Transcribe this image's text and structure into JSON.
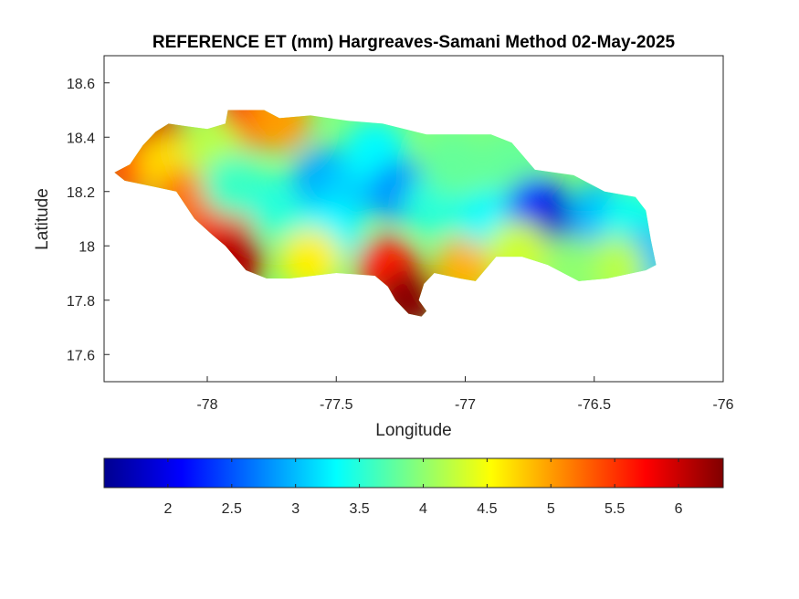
{
  "chart_data": {
    "type": "heatmap",
    "title": "REFERENCE ET (mm) Hargreaves-Samani Method  02-May-2025",
    "xlabel": "Longitude",
    "ylabel": "Latitude",
    "xlim": [
      -78.4,
      -76.0
    ],
    "ylim": [
      17.5,
      18.7
    ],
    "xticks": [
      -78,
      -77.5,
      -77,
      -76.5,
      -76
    ],
    "xtick_labels": [
      "-78",
      "-77.5",
      "-77",
      "-76.5",
      "-76"
    ],
    "yticks": [
      17.6,
      17.8,
      18.0,
      18.2,
      18.4,
      18.6
    ],
    "ytick_labels": [
      "17.6",
      "17.8",
      "18",
      "18.2",
      "18.4",
      "18.6"
    ],
    "grid": false,
    "colormap": "jet",
    "colorbar": {
      "orientation": "horizontal",
      "location": "bottom",
      "range": [
        1.5,
        6.35
      ],
      "ticks": [
        2,
        2.5,
        3,
        3.5,
        4,
        4.5,
        5,
        5.5,
        6
      ],
      "tick_labels": [
        "2",
        "2.5",
        "3",
        "3.5",
        "4",
        "4.5",
        "5",
        "5.5",
        "6"
      ]
    },
    "region_outline": [
      [
        -78.36,
        18.27
      ],
      [
        -78.3,
        18.3
      ],
      [
        -78.25,
        18.37
      ],
      [
        -78.2,
        18.42
      ],
      [
        -78.15,
        18.45
      ],
      [
        -78.08,
        18.44
      ],
      [
        -78.0,
        18.43
      ],
      [
        -77.93,
        18.45
      ],
      [
        -77.92,
        18.5
      ],
      [
        -77.78,
        18.5
      ],
      [
        -77.72,
        18.47
      ],
      [
        -77.6,
        18.48
      ],
      [
        -77.45,
        18.46
      ],
      [
        -77.32,
        18.45
      ],
      [
        -77.15,
        18.41
      ],
      [
        -77.05,
        18.41
      ],
      [
        -76.9,
        18.41
      ],
      [
        -76.82,
        18.38
      ],
      [
        -76.73,
        18.28
      ],
      [
        -76.58,
        18.26
      ],
      [
        -76.46,
        18.2
      ],
      [
        -76.34,
        18.18
      ],
      [
        -76.3,
        18.13
      ],
      [
        -76.28,
        18.02
      ],
      [
        -76.26,
        17.93
      ],
      [
        -76.3,
        17.91
      ],
      [
        -76.45,
        17.88
      ],
      [
        -76.56,
        17.87
      ],
      [
        -76.68,
        17.93
      ],
      [
        -76.78,
        17.96
      ],
      [
        -76.88,
        17.96
      ],
      [
        -76.96,
        17.87
      ],
      [
        -77.02,
        17.88
      ],
      [
        -77.12,
        17.9
      ],
      [
        -77.16,
        17.86
      ],
      [
        -77.18,
        17.8
      ],
      [
        -77.15,
        17.76
      ],
      [
        -77.17,
        17.74
      ],
      [
        -77.22,
        17.75
      ],
      [
        -77.27,
        17.8
      ],
      [
        -77.3,
        17.85
      ],
      [
        -77.35,
        17.89
      ],
      [
        -77.5,
        17.9
      ],
      [
        -77.68,
        17.88
      ],
      [
        -77.77,
        17.88
      ],
      [
        -77.85,
        17.91
      ],
      [
        -77.93,
        18.0
      ],
      [
        -77.98,
        18.04
      ],
      [
        -78.05,
        18.1
      ],
      [
        -78.12,
        18.2
      ],
      [
        -78.22,
        18.22
      ],
      [
        -78.32,
        18.24
      ]
    ],
    "sample_points": [
      {
        "lon": -78.2,
        "lat": 18.41,
        "value": 6.0
      },
      {
        "lon": -78.3,
        "lat": 18.28,
        "value": 5.4
      },
      {
        "lon": -78.15,
        "lat": 18.3,
        "value": 4.7
      },
      {
        "lon": -78.08,
        "lat": 18.17,
        "value": 5.2
      },
      {
        "lon": -77.95,
        "lat": 18.05,
        "value": 5.6
      },
      {
        "lon": -77.9,
        "lat": 17.94,
        "value": 6.1
      },
      {
        "lon": -77.85,
        "lat": 18.47,
        "value": 5.6
      },
      {
        "lon": -77.72,
        "lat": 18.46,
        "value": 5.0
      },
      {
        "lon": -77.98,
        "lat": 18.36,
        "value": 4.2
      },
      {
        "lon": -77.9,
        "lat": 18.22,
        "value": 3.6
      },
      {
        "lon": -77.72,
        "lat": 18.15,
        "value": 3.5
      },
      {
        "lon": -77.55,
        "lat": 18.25,
        "value": 2.9
      },
      {
        "lon": -77.45,
        "lat": 18.2,
        "value": 3.1
      },
      {
        "lon": -77.35,
        "lat": 18.35,
        "value": 3.3
      },
      {
        "lon": -77.52,
        "lat": 18.05,
        "value": 3.3
      },
      {
        "lon": -77.25,
        "lat": 18.2,
        "value": 2.8
      },
      {
        "lon": -77.12,
        "lat": 18.15,
        "value": 3.5
      },
      {
        "lon": -77.05,
        "lat": 18.3,
        "value": 3.8
      },
      {
        "lon": -77.6,
        "lat": 17.95,
        "value": 4.6
      },
      {
        "lon": -77.3,
        "lat": 17.92,
        "value": 5.6
      },
      {
        "lon": -77.22,
        "lat": 17.8,
        "value": 6.3
      },
      {
        "lon": -77.0,
        "lat": 17.92,
        "value": 4.9
      },
      {
        "lon": -76.9,
        "lat": 18.1,
        "value": 3.3
      },
      {
        "lon": -76.82,
        "lat": 18.3,
        "value": 3.8
      },
      {
        "lon": -76.72,
        "lat": 18.14,
        "value": 2.3
      },
      {
        "lon": -76.62,
        "lat": 18.06,
        "value": 1.8
      },
      {
        "lon": -76.48,
        "lat": 18.12,
        "value": 3.0
      },
      {
        "lon": -76.35,
        "lat": 18.1,
        "value": 3.4
      },
      {
        "lon": -76.3,
        "lat": 17.96,
        "value": 3.0
      },
      {
        "lon": -76.42,
        "lat": 17.92,
        "value": 4.2
      },
      {
        "lon": -76.6,
        "lat": 17.92,
        "value": 4.0
      },
      {
        "lon": -76.8,
        "lat": 17.98,
        "value": 4.3
      }
    ]
  }
}
